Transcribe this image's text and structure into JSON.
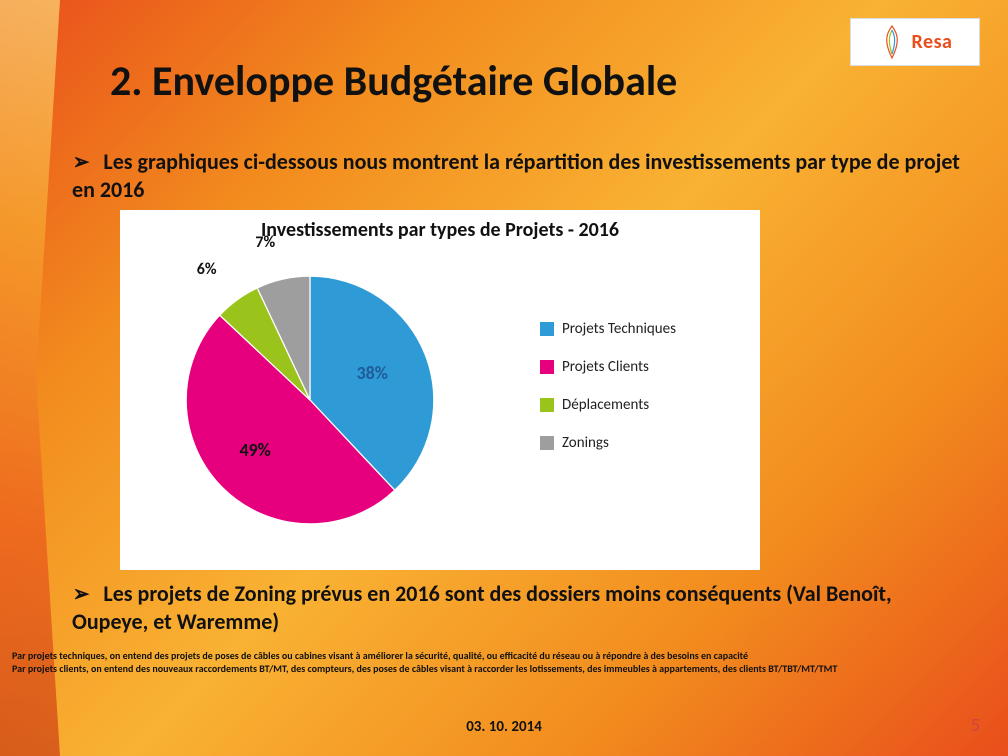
{
  "brand": {
    "name": "Resa",
    "logo_text": "Resa",
    "logo_accent": "#e94e1b"
  },
  "title": "2. Enveloppe Budgétaire Globale",
  "bullets": {
    "b1": "Les graphiques ci-dessous nous montrent la répartition des investissements par type de projet en 2016",
    "b2": "Les projets de Zoning prévus en 2016 sont des dossiers moins conséquents (Val Benoît, Oupeye, et Waremme)"
  },
  "chart": {
    "type": "pie",
    "title": "Investissements par types de Projets - 2016",
    "title_fontsize": 20,
    "background_color": "#ffffff",
    "slices": [
      {
        "label": "Projets Techniques",
        "value": 38,
        "color": "#2e9bd6",
        "data_label": "38%",
        "label_color": "#1f5c98",
        "label_fontsize": 18
      },
      {
        "label": "Projets Clients",
        "value": 49,
        "color": "#e6007e",
        "data_label": "49%",
        "label_color": "#111111",
        "label_fontsize": 18
      },
      {
        "label": "Déplacements",
        "value": 6,
        "color": "#9ac31c",
        "data_label": "6%",
        "label_color": "#111111",
        "label_fontsize": 16
      },
      {
        "label": "Zonings",
        "value": 7,
        "color": "#9e9e9e",
        "data_label": "7%",
        "label_color": "#111111",
        "label_fontsize": 16
      }
    ],
    "legend_fontsize": 15,
    "start_angle_deg": -90
  },
  "footnotes": {
    "f1": "Par projets techniques, on entend des projets de poses de câbles ou cabines visant à améliorer la sécurité, qualité, ou efficacité du réseau ou à répondre à des besoins en capacité",
    "f2": "Par projets clients, on entend des nouveaux raccordements BT/MT, des compteurs, des poses de câbles visant à raccorder les lotissements, des immeubles à appartements, des clients BT/TBT/MT/TMT"
  },
  "footer": {
    "date": "03. 10. 2014",
    "page": "5"
  },
  "bullet_marker": "➢"
}
